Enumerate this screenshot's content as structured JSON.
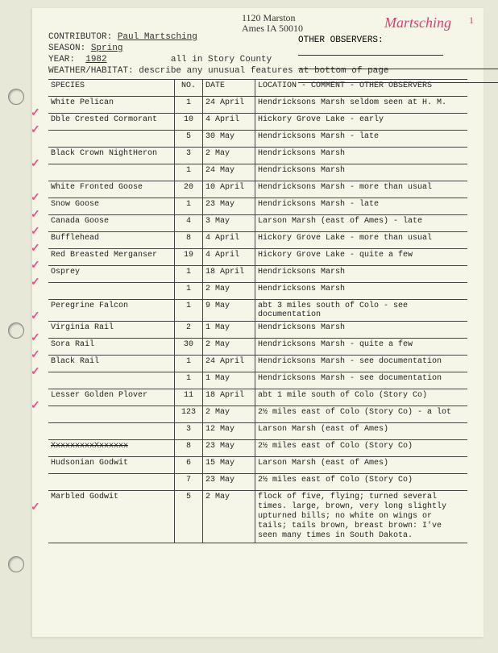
{
  "handwritten": {
    "address_line1": "1120 Marston",
    "address_line2": "Ames IA 50010",
    "name_annotation": "Martsching",
    "page_num": "1"
  },
  "header": {
    "contributor_label": "CONTRIBUTOR:",
    "contributor_value": "Paul Martsching",
    "other_observers_label": "OTHER OBSERVERS:",
    "season_label": "SEASON:",
    "season_value": "Spring",
    "year_label": "YEAR:",
    "year_value": "1982",
    "county_note": "all in Story County",
    "weather_label": "WEATHER/HABITAT: describe any unusual features at bottom of page"
  },
  "columns": {
    "species": "SPECIES",
    "no": "NO.",
    "date": "DATE",
    "location": "LOCATION - COMMENT - OTHER OBSERVERS"
  },
  "rows": [
    {
      "species": "White Pelican",
      "no": "1",
      "date": "24 April",
      "loc": "Hendricksons Marsh\nseldom seen at H. M.",
      "tick": true
    },
    {
      "species": "Dble Crested Cormorant",
      "no": "10",
      "date": "4 April",
      "loc": "Hickory Grove Lake - early",
      "tick": true
    },
    {
      "species": "",
      "no": "5",
      "date": "30 May",
      "loc": "Hendricksons Marsh - late"
    },
    {
      "species": "Black Crown NightHeron",
      "no": "3",
      "date": "2 May",
      "loc": "Hendricksons Marsh",
      "tick": true
    },
    {
      "species": "",
      "no": "1",
      "date": "24 May",
      "loc": "Hendricksons Marsh"
    },
    {
      "species": "White Fronted Goose",
      "no": "20",
      "date": "10 April",
      "loc": "Hendricksons Marsh - more than usual",
      "tick": true
    },
    {
      "species": "Snow Goose",
      "no": "1",
      "date": "23 May",
      "loc": "Hendricksons Marsh - late",
      "tick": true
    },
    {
      "species": "Canada Goose",
      "no": "4",
      "date": "3 May",
      "loc": "Larson Marsh (east of Ames) - late",
      "tick": true
    },
    {
      "species": "Bufflehead",
      "no": "8",
      "date": "4 April",
      "loc": "Hickory Grove Lake - more than usual",
      "tick": true
    },
    {
      "species": "Red Breasted Merganser",
      "no": "19",
      "date": "4 April",
      "loc": "Hickory Grove Lake - quite a few",
      "tick": true
    },
    {
      "species": "Osprey",
      "no": "1",
      "date": "18 April",
      "loc": "Hendricksons Marsh",
      "tick": true
    },
    {
      "species": "",
      "no": "1",
      "date": "2 May",
      "loc": "Hendricksons Marsh"
    },
    {
      "species": "Peregrine Falcon",
      "no": "1",
      "date": "9 May",
      "loc": "abt 3 miles south of Colo - see documentation",
      "tick": true
    },
    {
      "species": "Virginia Rail",
      "no": "2",
      "date": "1 May",
      "loc": "Hendricksons Marsh",
      "tick": true
    },
    {
      "species": "Sora Rail",
      "no": "30",
      "date": "2 May",
      "loc": "Hendricksons Marsh - quite a few",
      "tick": true
    },
    {
      "species": "Black Rail",
      "no": "1",
      "date": "24 April",
      "loc": "Hendricksons Marsh - see documentation",
      "tick": true
    },
    {
      "species": "",
      "no": "1",
      "date": "1 May",
      "loc": "Hendricksons Marsh - see documentation"
    },
    {
      "species": "Lesser Golden Plover",
      "no": "11",
      "date": "18 April",
      "loc": "abt 1 mile south of Colo (Story Co)",
      "tick": true
    },
    {
      "species": "",
      "no": "123",
      "date": "2 May",
      "loc": "2½ miles east of Colo (Story Co) - a lot"
    },
    {
      "species": "",
      "no": "3",
      "date": "12 May",
      "loc": "Larson Marsh (east of Ames)"
    },
    {
      "species": "XxxxxxxxxXxxxxxx",
      "no": "8",
      "date": "23 May",
      "loc": "2½ miles east of Colo (Story Co)",
      "strike": true
    },
    {
      "species": "Hudsonian Godwit",
      "no": "6",
      "date": "15 May",
      "loc": "Larson Marsh (east of Ames)"
    },
    {
      "species": "",
      "no": "7",
      "date": "23 May",
      "loc": "2½ miles east of Colo (Story Co)"
    },
    {
      "species": "Marbled Godwit",
      "no": "5",
      "date": "2 May",
      "loc": "flock of five, flying; turned several times. large, brown, very long slightly upturned bills; no white on wings or tails;  tails brown, breast brown:  I've seen many times in South Dakota.",
      "tick": true,
      "tall": true
    }
  ]
}
